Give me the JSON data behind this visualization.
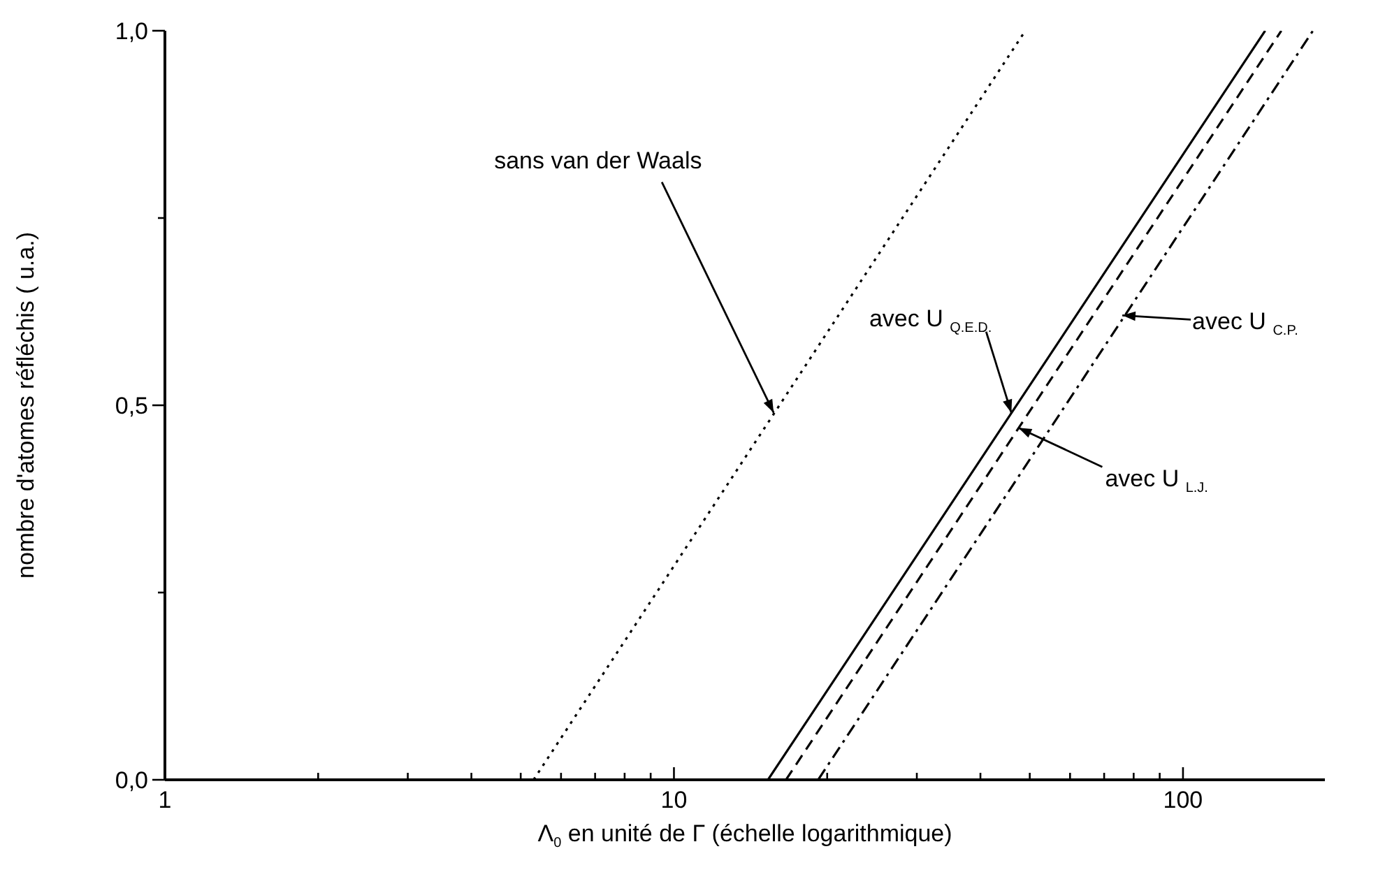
{
  "chart_data": {
    "type": "line",
    "xlabel": "Λ$_{0}$ en unité de Γ (échelle logarithmique)",
    "ylabel": "nombre d'atomes réfléchis ( u.a.)",
    "log": "x",
    "xlim": [
      1,
      190
    ],
    "xticks": [
      1,
      {
        "value": 2,
        "label": null
      },
      {
        "value": 3,
        "label": null
      },
      {
        "value": 4,
        "label": null
      },
      {
        "value": 5,
        "label": null
      },
      {
        "value": 6,
        "label": null
      },
      {
        "value": 7,
        "label": null
      },
      {
        "value": 8,
        "label": null
      },
      {
        "value": 9,
        "label": null
      },
      10,
      {
        "value": 20,
        "label": null
      },
      {
        "value": 30,
        "label": null
      },
      {
        "value": 40,
        "label": null
      },
      {
        "value": 50,
        "label": null
      },
      {
        "value": 60,
        "label": null
      },
      {
        "value": 70,
        "label": null
      },
      {
        "value": 80,
        "label": null
      },
      {
        "value": 90,
        "label": null
      },
      100
    ],
    "ylim": [
      0,
      1
    ],
    "yticks": [
      {
        "value": 0,
        "label": "0,0"
      },
      {
        "value": 0.25,
        "label": null
      },
      {
        "value": 0.5,
        "label": "0,5"
      },
      {
        "value": 0.75,
        "label": null
      },
      {
        "value": 1,
        "label": "1,0"
      }
    ],
    "grid": false,
    "marker": "none",
    "series": [
      {
        "color": "#000000",
        "line_style": "dotted",
        "x": [
          5.3,
          49
        ],
        "values": [
          0,
          1
        ]
      },
      {
        "color": "#000000",
        "line_style": "solid",
        "x": [
          15.3,
          145
        ],
        "values": [
          0,
          1
        ]
      },
      {
        "color": "#000000",
        "line_style": "dashed",
        "x": [
          16.6,
          156
        ],
        "values": [
          0,
          1
        ]
      },
      {
        "color": "#000000",
        "line_style": "dashdot",
        "x": [
          19.2,
          180
        ],
        "values": [
          0,
          1
        ]
      }
    ],
    "annotations": [
      {
        "text": "sans van der Waals",
        "x": 15.7,
        "y": 0.49
      },
      {
        "text": "avec U $_{Q.E.D.}$",
        "x": 46,
        "y": 0.49
      },
      {
        "text": "avec U $_{C.P.}$",
        "x": 76,
        "y": 0.62
      },
      {
        "text": "avec U $_{L.J.}$",
        "x": 47.5,
        "y": 0.47
      }
    ]
  }
}
